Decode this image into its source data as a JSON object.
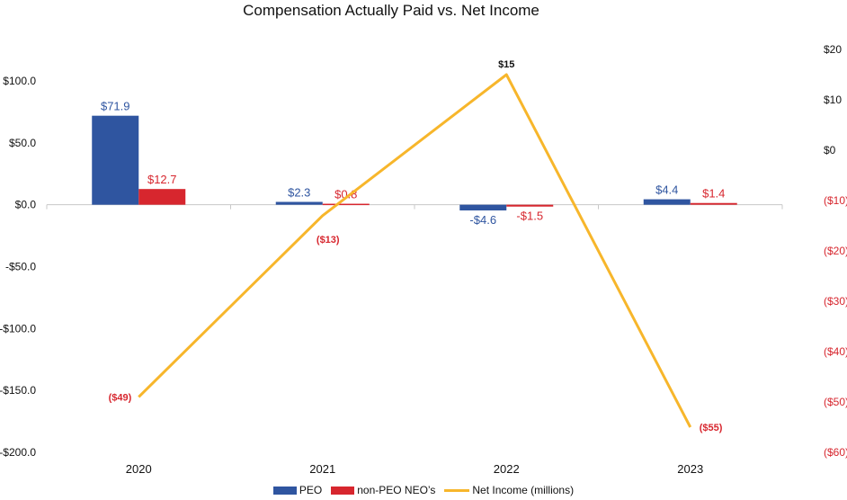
{
  "chart_data": {
    "type": "bar",
    "title": "Compensation Actually Paid vs. Net Income",
    "categories": [
      "2020",
      "2021",
      "2022",
      "2023"
    ],
    "series": [
      {
        "name": "PEO",
        "type": "bar",
        "axis": "left",
        "color": "#2f55a0",
        "values": [
          71.9,
          2.3,
          -4.6,
          4.4
        ],
        "labels": [
          "$71.9",
          "$2.3",
          "-$4.6",
          "$4.4"
        ]
      },
      {
        "name": "non-PEO NEO’s",
        "type": "bar",
        "axis": "left",
        "color": "#d7262e",
        "values": [
          12.7,
          0.8,
          -1.5,
          1.4
        ],
        "labels": [
          "$12.7",
          "$0.8",
          "-$1.5",
          "$1.4"
        ]
      },
      {
        "name": "Net Income (millions)",
        "type": "line",
        "axis": "right",
        "color": "#f7b62b",
        "values": [
          -49,
          -13,
          15,
          -55
        ],
        "labels": [
          "($49)",
          "($13)",
          "$15",
          "($55)"
        ]
      }
    ],
    "y_left": {
      "range": [
        -200,
        100
      ],
      "ticks": [
        100,
        50,
        0,
        -50,
        -100,
        -150,
        -200
      ],
      "tick_labels": [
        "$100.0",
        "$50.0",
        "$0.0",
        "-$50.0",
        "-$100.0",
        "-$150.0",
        "-$200.0"
      ]
    },
    "y_right": {
      "range": [
        -60,
        20
      ],
      "ticks": [
        20,
        10,
        0,
        -10,
        -20,
        -30,
        -40,
        -50,
        -60
      ],
      "tick_labels": [
        "$20",
        "$10",
        "$0",
        "($10)",
        "($20)",
        "($30)",
        "($40)",
        "($50)",
        "($60)"
      ]
    },
    "grid": false,
    "legend_position": "bottom"
  }
}
